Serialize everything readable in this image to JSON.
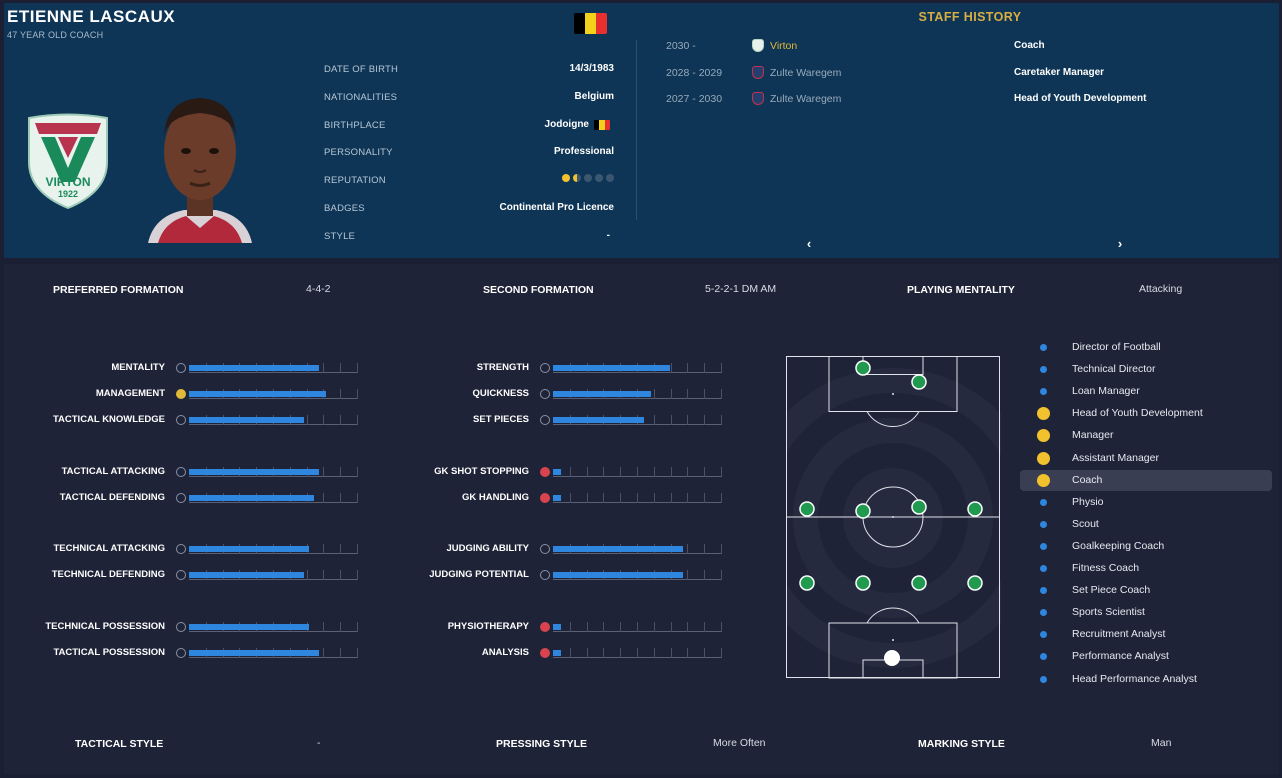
{
  "colors": {
    "top_panel": "#0e3556",
    "bottom_panel": "#1f2337",
    "accent_gold": "#d8ae43",
    "bar_blue": "#2f86df",
    "position_green": "#1f9a4f",
    "belgium_flag": [
      "#000000",
      "#f2d21b",
      "#e8312f"
    ]
  },
  "header": {
    "name": "ETIENNE LASCAUX",
    "subtitle": "47 YEAR OLD COACH",
    "nation_flag_icon": "belgium-flag-icon",
    "club_crest": {
      "icon": "virton-crest-icon",
      "text": "VIRTON",
      "year": "1922"
    }
  },
  "info": [
    {
      "label": "DATE OF BIRTH",
      "value": "14/3/1983"
    },
    {
      "label": "NATIONALITIES",
      "value": "Belgium"
    },
    {
      "label": "BIRTHPLACE",
      "value": "Jodoigne",
      "flag_icon": "belgium-flag-icon"
    },
    {
      "label": "PERSONALITY",
      "value": "Professional"
    },
    {
      "label": "REPUTATION",
      "value": "",
      "stars": 1.5,
      "stars_max": 5
    },
    {
      "label": "BADGES",
      "value": "Continental Pro Licence"
    },
    {
      "label": "STYLE",
      "value": "-"
    }
  ],
  "history": {
    "title": "STAFF HISTORY",
    "rows": [
      {
        "years": "2030 -",
        "club": "Virton",
        "club_color": "#e0b93a",
        "role": "Coach"
      },
      {
        "years": "2028 - 2029",
        "club": "Zulte Waregem",
        "club_color": "#98aabb",
        "role": "Caretaker Manager"
      },
      {
        "years": "2027 - 2030",
        "club": "Zulte Waregem",
        "club_color": "#98aabb",
        "role": "Head of Youth Development"
      }
    ],
    "prev_icon": "‹",
    "next_icon": "›"
  },
  "formations": {
    "preferred_label": "PREFERRED FORMATION",
    "preferred_value": "4-4-2",
    "second_label": "SECOND FORMATION",
    "second_value": "5-2-2-1 DM AM",
    "mentality_label": "PLAYING MENTALITY",
    "mentality_value": "Attacking"
  },
  "footer": {
    "tactical_label": "TACTICAL STYLE",
    "tactical_value": "-",
    "pressing_label": "PRESSING STYLE",
    "pressing_value": "More Often",
    "marking_label": "MARKING STYLE",
    "marking_value": "Man"
  },
  "attributes_left": [
    {
      "label": "MENTALITY",
      "level": 0.77,
      "icon": "grey"
    },
    {
      "label": "MANAGEMENT",
      "level": 0.81,
      "icon": "gold"
    },
    {
      "label": "TACTICAL KNOWLEDGE",
      "level": 0.68,
      "icon": "grey"
    },
    {
      "label": "TACTICAL ATTACKING",
      "level": 0.77,
      "icon": "grey"
    },
    {
      "label": "TACTICAL DEFENDING",
      "level": 0.74,
      "icon": "grey"
    },
    {
      "label": "TECHNICAL ATTACKING",
      "level": 0.71,
      "icon": "grey"
    },
    {
      "label": "TECHNICAL DEFENDING",
      "level": 0.68,
      "icon": "grey"
    },
    {
      "label": "TECHNICAL POSSESSION",
      "level": 0.71,
      "icon": "grey"
    },
    {
      "label": "TACTICAL POSSESSION",
      "level": 0.77,
      "icon": "grey"
    }
  ],
  "attributes_mid": [
    {
      "label": "STRENGTH",
      "level": 0.69,
      "icon": "grey"
    },
    {
      "label": "QUICKNESS",
      "level": 0.58,
      "icon": "grey"
    },
    {
      "label": "SET PIECES",
      "level": 0.54,
      "icon": "grey"
    },
    {
      "label": "GK SHOT STOPPING",
      "level": 0.05,
      "icon": "red"
    },
    {
      "label": "GK HANDLING",
      "level": 0.05,
      "icon": "red"
    },
    {
      "label": "JUDGING ABILITY",
      "level": 0.77,
      "icon": "grey"
    },
    {
      "label": "JUDGING POTENTIAL",
      "level": 0.77,
      "icon": "grey"
    },
    {
      "label": "PHYSIOTHERAPY",
      "level": 0.05,
      "icon": "red"
    },
    {
      "label": "ANALYSIS",
      "level": 0.05,
      "icon": "red"
    }
  ],
  "roles": [
    {
      "label": "Director of Football",
      "highlight": false,
      "selected": false
    },
    {
      "label": "Technical Director",
      "highlight": false,
      "selected": false
    },
    {
      "label": "Loan Manager",
      "highlight": false,
      "selected": false
    },
    {
      "label": "Head of Youth Development",
      "highlight": true,
      "selected": false
    },
    {
      "label": "Manager",
      "highlight": true,
      "selected": false
    },
    {
      "label": "Assistant Manager",
      "highlight": true,
      "selected": false
    },
    {
      "label": "Coach",
      "highlight": true,
      "selected": true
    },
    {
      "label": "Physio",
      "highlight": false,
      "selected": false
    },
    {
      "label": "Scout",
      "highlight": false,
      "selected": false
    },
    {
      "label": "Goalkeeping Coach",
      "highlight": false,
      "selected": false
    },
    {
      "label": "Fitness Coach",
      "highlight": false,
      "selected": false
    },
    {
      "label": "Set Piece Coach",
      "highlight": false,
      "selected": false
    },
    {
      "label": "Sports Scientist",
      "highlight": false,
      "selected": false
    },
    {
      "label": "Recruitment Analyst",
      "highlight": false,
      "selected": false
    },
    {
      "label": "Performance Analyst",
      "highlight": false,
      "selected": false
    },
    {
      "label": "Head Performance Analyst",
      "highlight": false,
      "selected": false
    }
  ]
}
